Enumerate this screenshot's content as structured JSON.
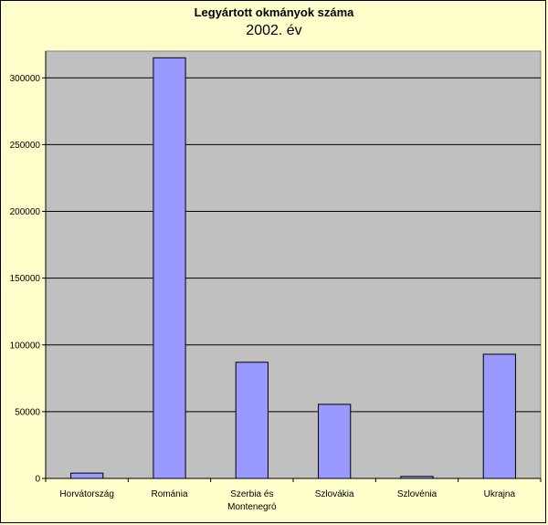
{
  "chart_data": {
    "type": "bar",
    "title": "Legyártott okmányok száma",
    "subtitle": "2002. év",
    "categories": [
      [
        "Horvátország"
      ],
      [
        "Románia"
      ],
      [
        "Szerbia és",
        "Montenegró"
      ],
      [
        "Szlovákia"
      ],
      [
        "Szlovénia"
      ],
      [
        "Ukrajna"
      ]
    ],
    "values": [
      4000,
      315000,
      87000,
      55500,
      1500,
      93000
    ],
    "ylim": [
      0,
      320000
    ],
    "yticks": [
      0,
      50000,
      100000,
      150000,
      200000,
      250000,
      300000
    ],
    "ytick_labels": [
      "0",
      "50000",
      "100000",
      "150000",
      "200000",
      "250000",
      "300000"
    ],
    "grid": true,
    "legend": "none",
    "colors": {
      "background": "#ffffcc",
      "plot_area": "#c0c0c0",
      "bar_fill": "#9999ff",
      "bar_stroke": "#000000",
      "gridline": "#000000"
    }
  }
}
